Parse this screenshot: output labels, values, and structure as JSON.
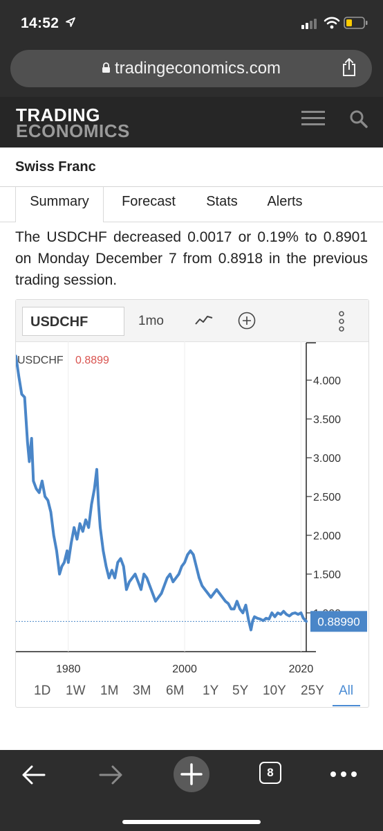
{
  "status_bar": {
    "time": "14:52"
  },
  "browser": {
    "url": "tradingeconomics.com"
  },
  "site": {
    "logo_line1": "TRADING",
    "logo_line2": "ECONOMICS"
  },
  "page": {
    "title": "Swiss Franc"
  },
  "tabs": [
    {
      "label": "Summary"
    },
    {
      "label": "Forecast"
    },
    {
      "label": "Stats"
    },
    {
      "label": "Alerts"
    }
  ],
  "summary_text": "The USDCHF decreased 0.0017 or 0.19% to 0.8901 on Monday December 7 from 0.8918 in the previous trading session.",
  "chart_toolbar": {
    "symbol": "USDCHF",
    "interval": "1mo"
  },
  "ranges": [
    "1D",
    "1W",
    "1M",
    "3M",
    "6M",
    "1Y",
    "5Y",
    "10Y",
    "25Y",
    "All"
  ],
  "active_range": "All",
  "colors": {
    "line": "#4a86c8",
    "accent": "#4a8bd3",
    "legend_value": "#d9534f",
    "price_tag": "#4a86c8"
  },
  "chart_data": {
    "type": "line",
    "title": "",
    "xlabel": "",
    "ylabel": "",
    "legend_label": "USDCHF",
    "legend_value": "0.8899",
    "last_value_label": "0.88990",
    "last_value": 0.8899,
    "xlim": [
      1971,
      2020.9
    ],
    "ylim": [
      0.5,
      4.5
    ],
    "x_ticks": [
      1980,
      2000,
      2020
    ],
    "x_tick_labels": [
      "1980",
      "2000",
      "2020"
    ],
    "y_ticks": [
      1.0,
      1.5,
      2.0,
      2.5,
      3.0,
      3.5,
      4.0
    ],
    "y_tick_labels": [
      "1.000",
      "1.500",
      "2.000",
      "2.500",
      "3.000",
      "3.500",
      "4.000"
    ],
    "grid": false,
    "legend_position": "top-left",
    "series": [
      {
        "name": "USDCHF",
        "x": [
          1971.0,
          1971.5,
          1972.0,
          1972.5,
          1973.0,
          1973.3,
          1973.7,
          1974.0,
          1974.5,
          1975.0,
          1975.5,
          1976.0,
          1976.5,
          1977.0,
          1977.5,
          1978.0,
          1978.5,
          1978.9,
          1979.3,
          1979.8,
          1980.0,
          1980.5,
          1981.0,
          1981.5,
          1982.0,
          1982.5,
          1983.0,
          1983.5,
          1984.0,
          1984.5,
          1984.9,
          1985.2,
          1985.5,
          1986.0,
          1986.5,
          1987.0,
          1987.5,
          1988.0,
          1988.5,
          1989.0,
          1989.5,
          1990.0,
          1990.5,
          1991.0,
          1991.5,
          1992.0,
          1992.5,
          1993.0,
          1993.5,
          1994.0,
          1994.5,
          1995.0,
          1995.5,
          1996.0,
          1996.5,
          1997.0,
          1997.5,
          1998.0,
          1998.5,
          1999.0,
          1999.5,
          2000.0,
          2000.5,
          2001.0,
          2001.5,
          2002.0,
          2002.5,
          2003.0,
          2003.5,
          2004.0,
          2004.5,
          2005.0,
          2005.5,
          2006.0,
          2006.5,
          2007.0,
          2007.5,
          2008.0,
          2008.5,
          2009.0,
          2009.5,
          2010.0,
          2010.5,
          2011.0,
          2011.4,
          2011.7,
          2012.0,
          2012.5,
          2013.0,
          2013.5,
          2014.0,
          2014.5,
          2015.0,
          2015.5,
          2016.0,
          2016.5,
          2017.0,
          2017.5,
          2018.0,
          2018.5,
          2019.0,
          2019.5,
          2020.0,
          2020.4,
          2020.9
        ],
        "y": [
          4.31,
          4.05,
          3.82,
          3.78,
          3.2,
          2.95,
          3.25,
          2.7,
          2.6,
          2.55,
          2.7,
          2.5,
          2.45,
          2.3,
          2.0,
          1.8,
          1.5,
          1.6,
          1.65,
          1.8,
          1.65,
          1.9,
          2.1,
          1.95,
          2.15,
          2.05,
          2.2,
          2.1,
          2.4,
          2.6,
          2.85,
          2.4,
          2.1,
          1.8,
          1.6,
          1.45,
          1.55,
          1.45,
          1.65,
          1.7,
          1.6,
          1.3,
          1.4,
          1.45,
          1.5,
          1.4,
          1.3,
          1.5,
          1.45,
          1.35,
          1.25,
          1.15,
          1.2,
          1.25,
          1.35,
          1.45,
          1.5,
          1.4,
          1.45,
          1.5,
          1.6,
          1.65,
          1.75,
          1.8,
          1.75,
          1.6,
          1.45,
          1.35,
          1.3,
          1.25,
          1.2,
          1.25,
          1.3,
          1.25,
          1.2,
          1.15,
          1.12,
          1.05,
          1.05,
          1.15,
          1.05,
          1.0,
          1.1,
          0.9,
          0.78,
          0.9,
          0.95,
          0.93,
          0.92,
          0.9,
          0.93,
          0.92,
          1.0,
          0.95,
          1.0,
          0.98,
          1.02,
          0.98,
          0.96,
          0.99,
          1.0,
          0.98,
          1.0,
          0.93,
          0.89
        ]
      }
    ]
  }
}
